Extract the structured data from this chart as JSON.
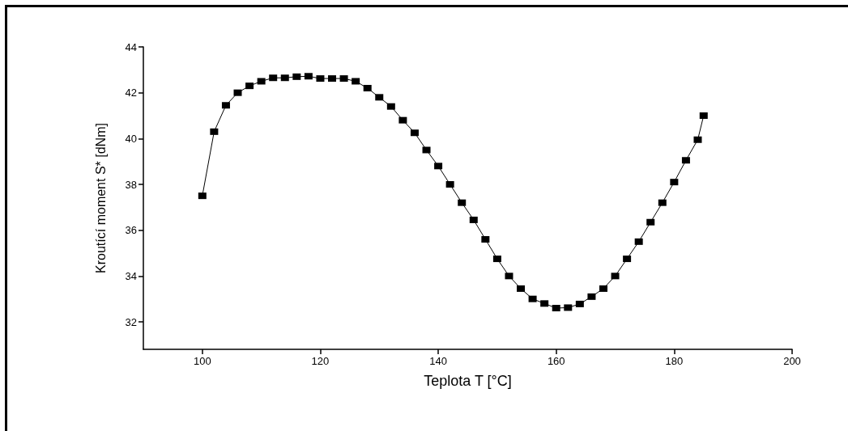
{
  "chart_data": {
    "type": "line",
    "xlabel": "Teplota T [°C]",
    "ylabel": "Kroutící moment S* [dNm]",
    "x": [
      100,
      102,
      104,
      106,
      108,
      110,
      112,
      114,
      116,
      118,
      120,
      122,
      124,
      126,
      128,
      130,
      132,
      134,
      136,
      138,
      140,
      142,
      144,
      146,
      148,
      150,
      152,
      154,
      156,
      158,
      160,
      162,
      164,
      166,
      168,
      170,
      172,
      174,
      176,
      178,
      180,
      182,
      184,
      185
    ],
    "series": [
      {
        "color": "#000000",
        "values": [
          37.5,
          40.3,
          41.45,
          42.0,
          42.3,
          42.5,
          42.65,
          42.65,
          42.7,
          42.72,
          42.62,
          42.62,
          42.62,
          42.5,
          42.2,
          41.8,
          41.4,
          40.8,
          40.25,
          39.5,
          38.8,
          38.0,
          37.2,
          36.45,
          35.6,
          34.75,
          34.0,
          33.45,
          33.0,
          32.8,
          32.6,
          32.62,
          32.78,
          33.1,
          33.45,
          34.0,
          34.75,
          35.5,
          36.35,
          37.2,
          38.1,
          39.05,
          39.95,
          41.0
        ]
      }
    ],
    "xlim": [
      90,
      200
    ],
    "xticks": [
      100,
      120,
      140,
      160,
      180,
      200
    ],
    "ylim": [
      30.8,
      44
    ],
    "yticks": [
      32,
      34,
      36,
      38,
      40,
      42,
      44
    ],
    "marker": "square",
    "line_style": "solid"
  }
}
